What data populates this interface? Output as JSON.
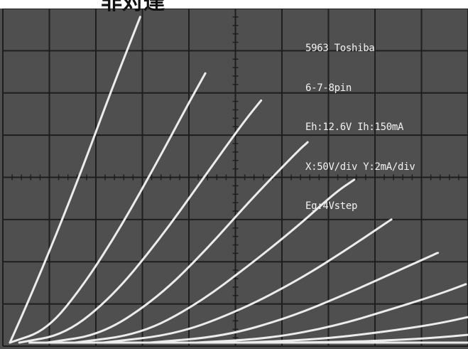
{
  "header": {
    "cropped_title": "非対達"
  },
  "readout": {
    "line1": "5963 Toshiba",
    "line2": "6-7-8pin",
    "line3": "Eh:12.6V Ih:150mA",
    "line4": "X:50V/div Y:2mA/div",
    "line5": "Eg:4Vstep"
  },
  "colors": {
    "screen": "#4f4f4f",
    "grid": "#1e1e1e",
    "trace": "#ececec",
    "text": "#f2f2f2"
  },
  "chart_data": {
    "type": "line",
    "title": "",
    "xlabel": "",
    "ylabel": "",
    "x_units_per_div": "50V",
    "y_units_per_div": "2mA",
    "xlim": [
      0,
      500
    ],
    "ylim": [
      0,
      16
    ],
    "grid": true,
    "series": [
      {
        "values": [
          [
            0,
            0
          ],
          [
            20,
            2
          ],
          [
            50,
            5.2
          ],
          [
            80,
            8.6
          ],
          [
            110,
            12.2
          ],
          [
            140,
            15.6
          ]
        ]
      },
      {
        "values": [
          [
            0,
            0
          ],
          [
            40,
            0.6
          ],
          [
            80,
            2.8
          ],
          [
            120,
            5.6
          ],
          [
            160,
            8.8
          ],
          [
            190,
            11.3
          ],
          [
            210,
            12.9
          ]
        ]
      },
      {
        "values": [
          [
            10,
            0
          ],
          [
            60,
            0.4
          ],
          [
            110,
            2.2
          ],
          [
            160,
            4.9
          ],
          [
            210,
            8
          ],
          [
            250,
            10.5
          ],
          [
            270,
            11.6
          ]
        ]
      },
      {
        "values": [
          [
            40,
            0
          ],
          [
            100,
            0.4
          ],
          [
            160,
            2.2
          ],
          [
            210,
            4.4
          ],
          [
            260,
            6.9
          ],
          [
            310,
            9.2
          ],
          [
            320,
            9.6
          ]
        ]
      },
      {
        "values": [
          [
            70,
            0
          ],
          [
            140,
            0.4
          ],
          [
            200,
            1.8
          ],
          [
            260,
            3.8
          ],
          [
            310,
            5.6
          ],
          [
            350,
            7.2
          ],
          [
            370,
            7.8
          ]
        ]
      },
      {
        "values": [
          [
            100,
            0
          ],
          [
            180,
            0.4
          ],
          [
            250,
            1.6
          ],
          [
            310,
            3
          ],
          [
            360,
            4.4
          ],
          [
            400,
            5.6
          ],
          [
            410,
            5.9
          ]
        ]
      },
      {
        "values": [
          [
            150,
            0
          ],
          [
            230,
            0.3
          ],
          [
            300,
            1.2
          ],
          [
            360,
            2.3
          ],
          [
            410,
            3.3
          ],
          [
            450,
            4.1
          ],
          [
            460,
            4.3
          ]
        ]
      },
      {
        "values": [
          [
            200,
            0
          ],
          [
            280,
            0.2
          ],
          [
            350,
            0.8
          ],
          [
            410,
            1.6
          ],
          [
            460,
            2.3
          ],
          [
            490,
            2.8
          ]
        ]
      },
      {
        "values": [
          [
            250,
            0
          ],
          [
            330,
            0.15
          ],
          [
            400,
            0.5
          ],
          [
            460,
            0.9
          ],
          [
            510,
            1.4
          ],
          [
            530,
            1.6
          ]
        ]
      },
      {
        "values": [
          [
            300,
            0
          ],
          [
            380,
            0.05
          ],
          [
            450,
            0.2
          ],
          [
            510,
            0.45
          ],
          [
            540,
            0.6
          ]
        ]
      }
    ]
  }
}
